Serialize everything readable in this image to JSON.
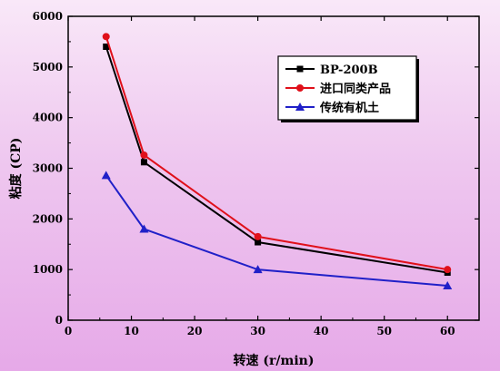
{
  "chart_data": {
    "type": "line",
    "title": "",
    "xlabel": "转速 (r/min)",
    "ylabel": "粘度 (CP)",
    "xlim": [
      0,
      65
    ],
    "ylim": [
      0,
      6000
    ],
    "xticks": [
      0,
      10,
      20,
      30,
      40,
      50,
      60
    ],
    "yticks": [
      0,
      1000,
      2000,
      3000,
      4000,
      5000,
      6000
    ],
    "grid": false,
    "legend_position": "top-right",
    "x": [
      6,
      12,
      30,
      60
    ],
    "series": [
      {
        "name": "BP-200B",
        "values": [
          5400,
          3120,
          1540,
          940
        ],
        "color": "#000000",
        "marker": "square"
      },
      {
        "name": "进口同类产品",
        "values": [
          5600,
          3260,
          1650,
          1000
        ],
        "color": "#e0101a",
        "marker": "circle"
      },
      {
        "name": "传统有机土",
        "values": [
          2860,
          1800,
          1000,
          680
        ],
        "color": "#2020c8",
        "marker": "triangle"
      }
    ]
  }
}
